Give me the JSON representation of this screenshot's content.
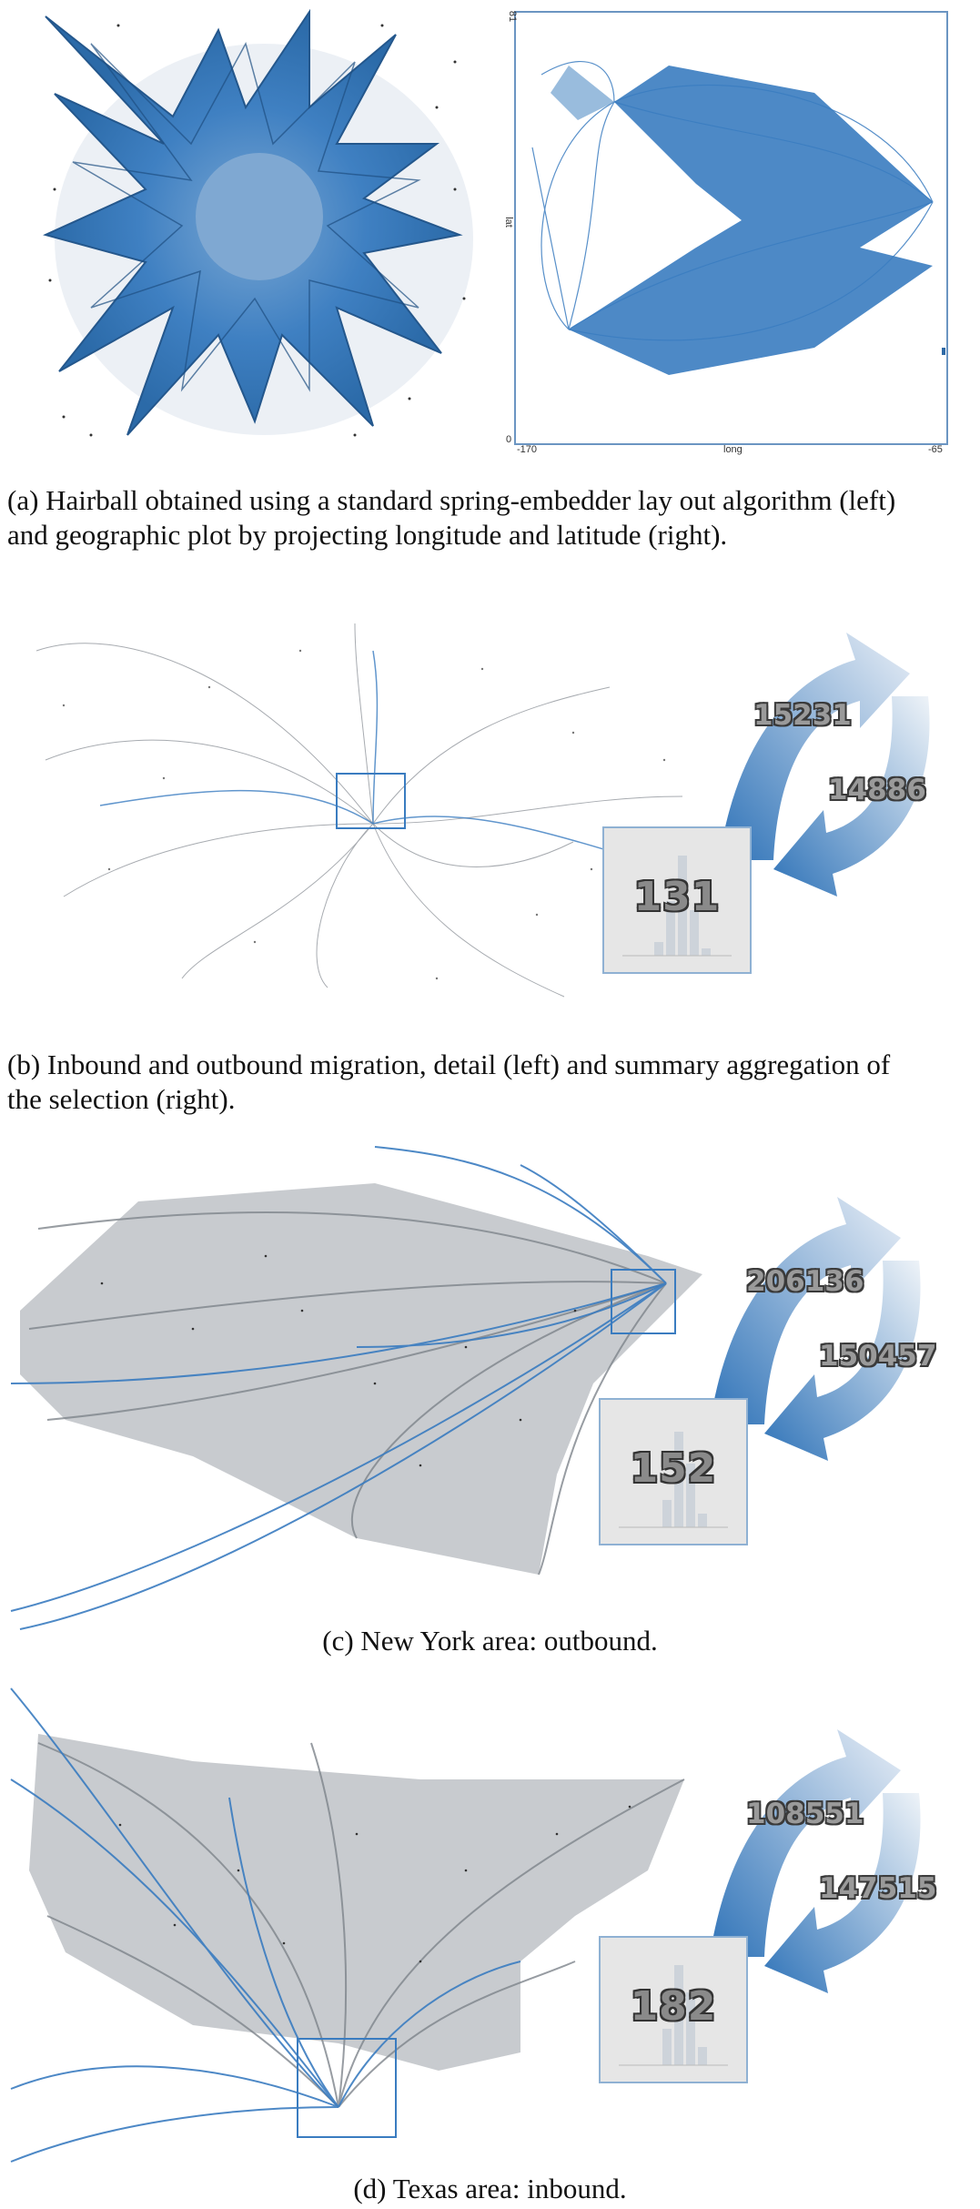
{
  "panel_a": {
    "caption_line1": "(a)  Hairball obtained using a standard spring-embedder lay out algorithm (left)",
    "caption_line2": "and geographic plot by projecting longitude and latitude (right).",
    "geo_plot": {
      "y_top_label": "81",
      "y_bottom_label": "0",
      "y_axis_label": "lat",
      "x_left_label": "-170",
      "x_right_label": "-65",
      "x_axis_label": "long"
    }
  },
  "panel_b": {
    "caption_line1": "(b)  Inbound and outbound migration, detail (left) and summary aggregation of",
    "caption_line2": "the selection (right).",
    "outbound": "15231",
    "inbound": "14886",
    "summary": "131"
  },
  "panel_c": {
    "caption": "(c)  New York area: outbound.",
    "outbound": "206136",
    "inbound": "150457",
    "summary": "152"
  },
  "panel_d": {
    "caption": "(d)  Texas area: inbound.",
    "outbound": "108551",
    "inbound": "147515",
    "summary": "182"
  },
  "colors": {
    "edge_blue": "#3a7cc0",
    "edge_grey": "#8a8f96",
    "arrow_blue": "#2f73b8"
  }
}
